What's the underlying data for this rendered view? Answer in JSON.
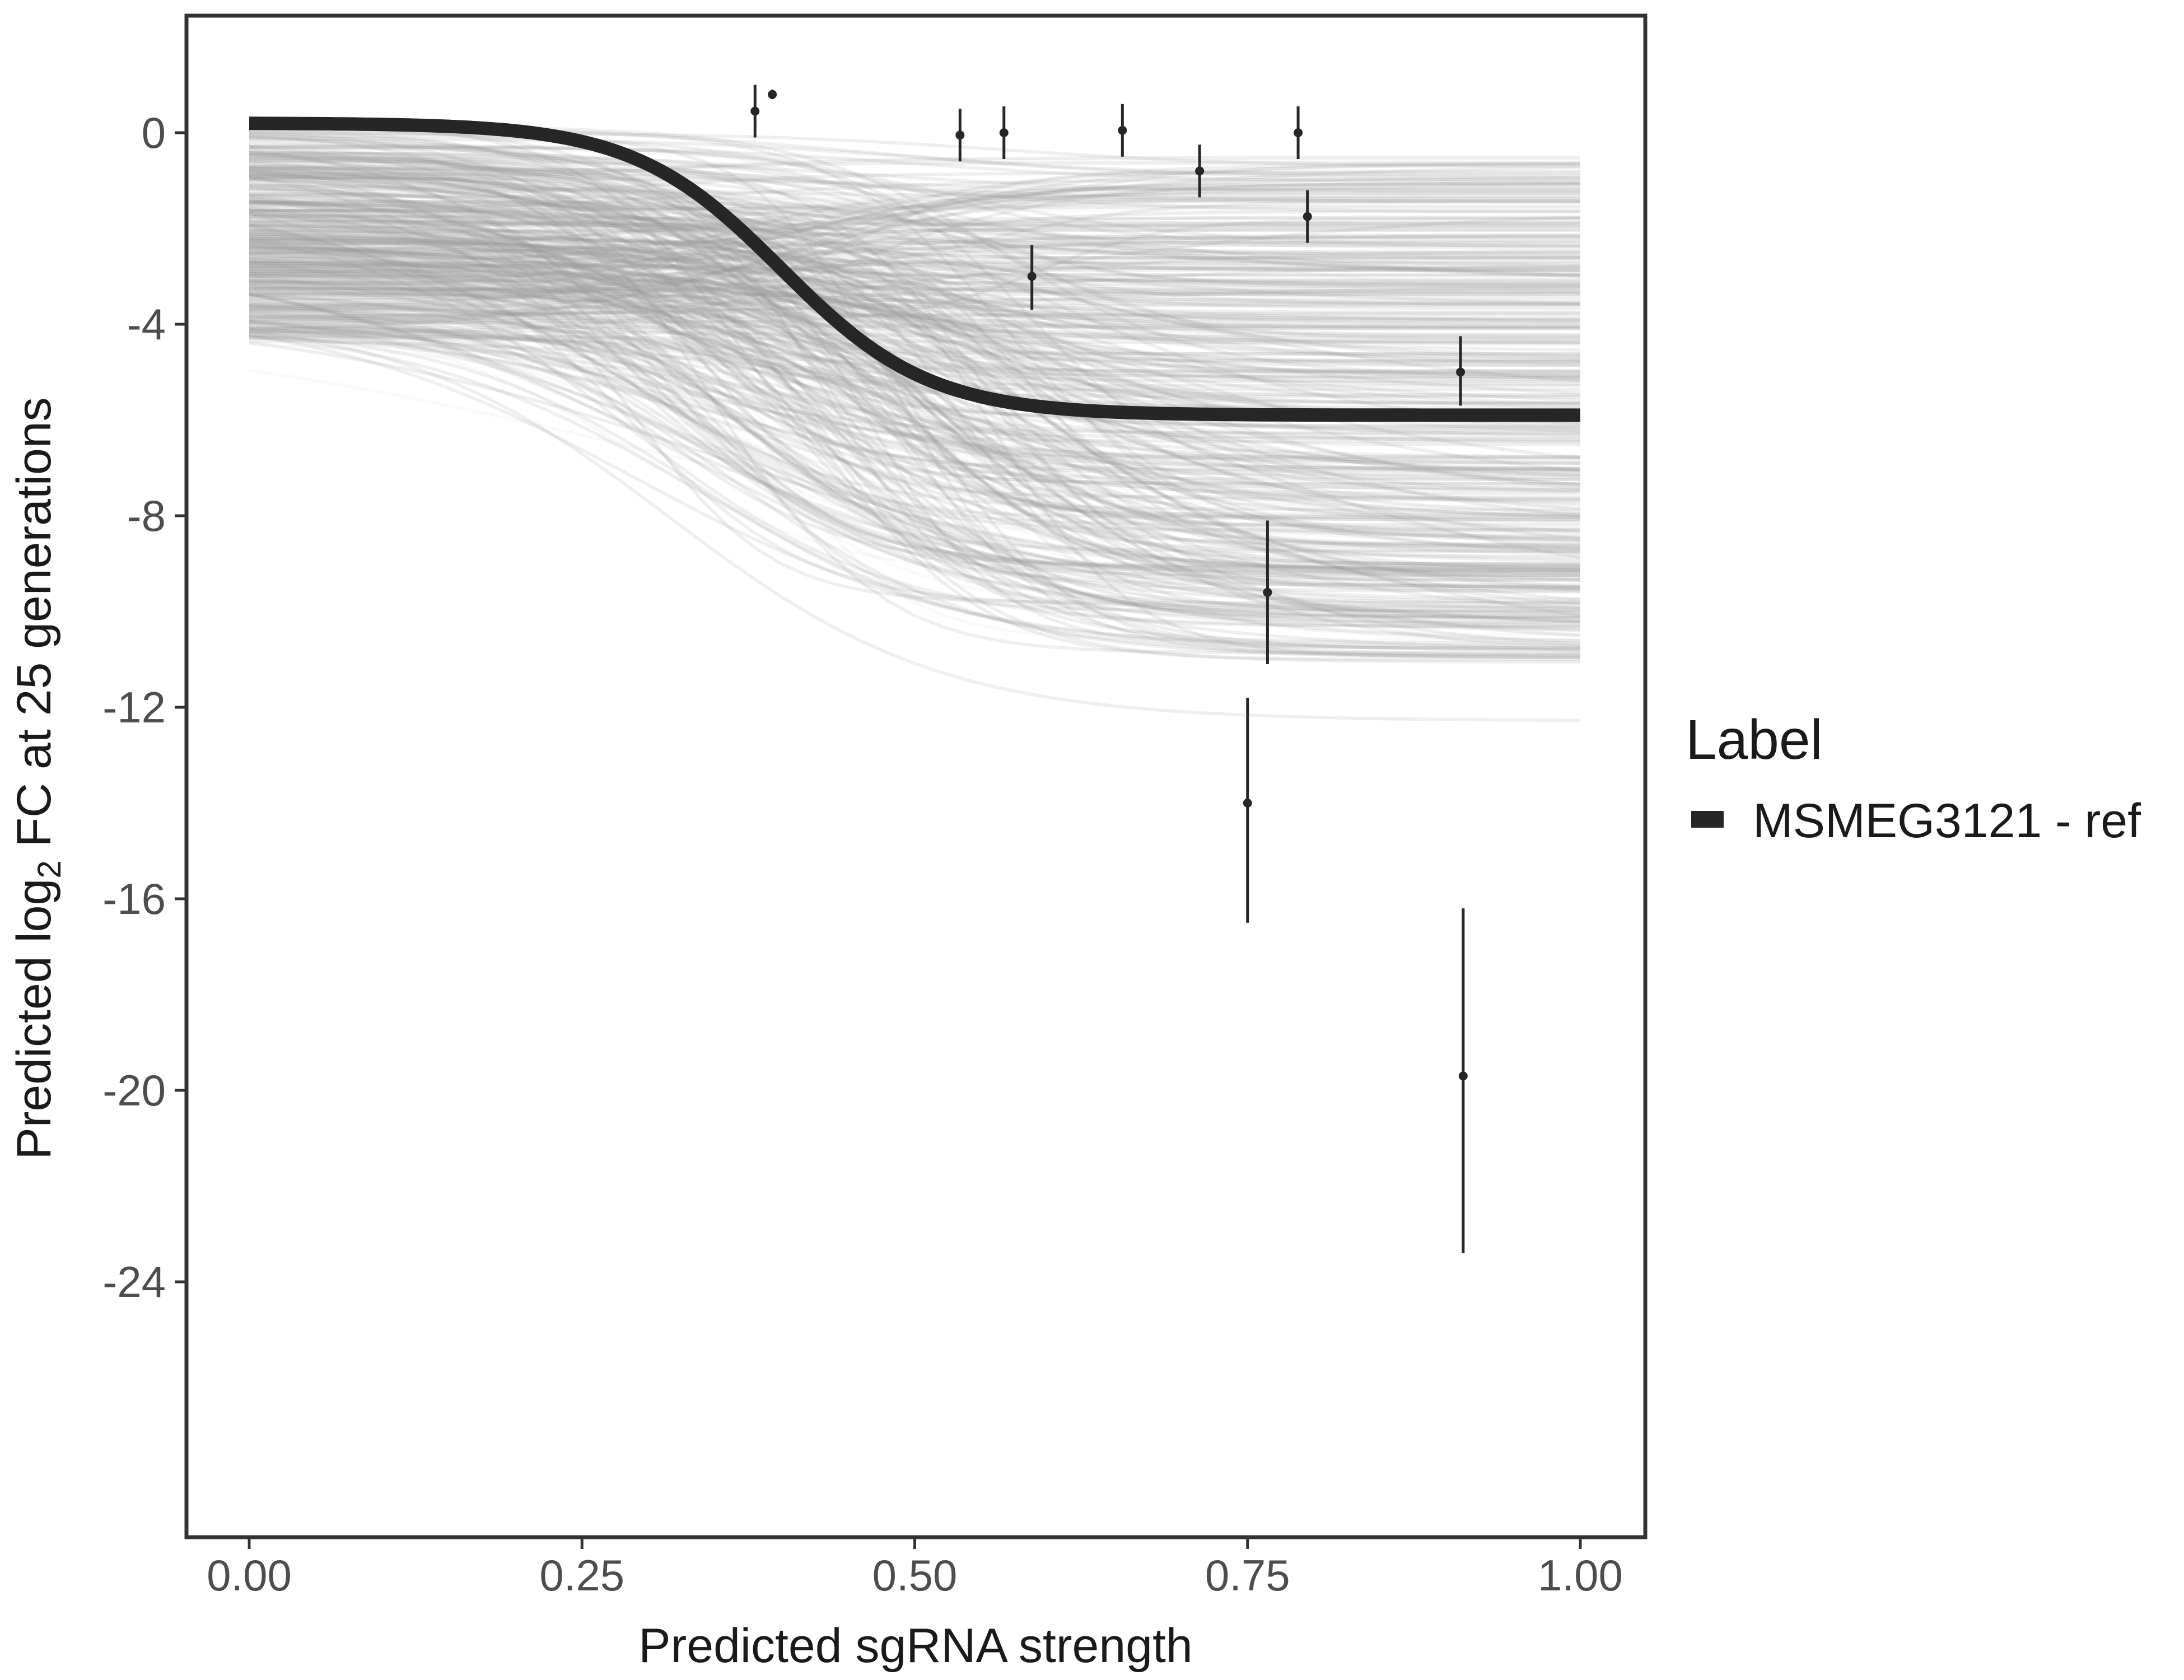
{
  "chart_data": {
    "type": "line",
    "xlabel": "Predicted sgRNA strength",
    "ylabel_parts": {
      "prefix": "Predicted  log",
      "subscript": "2",
      "suffix": " FC at 25 generations"
    },
    "xlim": [
      0,
      1
    ],
    "ylim": [
      -30,
      2.5
    ],
    "x_ticks": [
      0,
      0.25,
      0.5,
      0.75,
      1
    ],
    "x_tick_labels": [
      "0.00",
      "0.25",
      "0.50",
      "0.75",
      "1.00"
    ],
    "y_ticks": [
      0,
      -4,
      -8,
      -12,
      -16,
      -20,
      -24
    ],
    "y_tick_labels": [
      "0",
      "-4",
      "-8",
      "-12",
      "-16",
      "-20",
      "-24"
    ],
    "grid": false,
    "legend": {
      "title": "Label",
      "position": "right",
      "entries": [
        "MSMEG3121 - ref"
      ]
    },
    "fit_curve": {
      "name": "MSMEG3121 - ref",
      "color": "#262626",
      "model": "logistic",
      "upper": 0.2,
      "lower": -5.9,
      "midpoint": 0.4,
      "slope": 18
    },
    "posterior_draws": {
      "count": 400,
      "color": "#9e9e9e"
    },
    "points": [
      {
        "x": 0.38,
        "y": 0.45,
        "ymin": -0.1,
        "ymax": 1.0
      },
      {
        "x": 0.393,
        "y": 0.8,
        "ymin": 0.7,
        "ymax": 0.9
      },
      {
        "x": 0.534,
        "y": -0.05,
        "ymin": -0.6,
        "ymax": 0.5
      },
      {
        "x": 0.567,
        "y": 0.0,
        "ymin": -0.55,
        "ymax": 0.55
      },
      {
        "x": 0.588,
        "y": -3.0,
        "ymin": -3.7,
        "ymax": -2.35
      },
      {
        "x": 0.656,
        "y": 0.05,
        "ymin": -0.5,
        "ymax": 0.6
      },
      {
        "x": 0.714,
        "y": -0.8,
        "ymin": -1.35,
        "ymax": -0.25
      },
      {
        "x": 0.75,
        "y": -14.0,
        "ymin": -16.5,
        "ymax": -11.8
      },
      {
        "x": 0.765,
        "y": -9.6,
        "ymin": -11.1,
        "ymax": -8.1
      },
      {
        "x": 0.788,
        "y": 0.0,
        "ymin": -0.55,
        "ymax": 0.55
      },
      {
        "x": 0.795,
        "y": -1.75,
        "ymin": -2.3,
        "ymax": -1.2
      },
      {
        "x": 0.91,
        "y": -5.0,
        "ymin": -5.7,
        "ymax": -4.25
      },
      {
        "x": 0.912,
        "y": -19.7,
        "ymin": -23.4,
        "ymax": -16.2
      }
    ]
  }
}
